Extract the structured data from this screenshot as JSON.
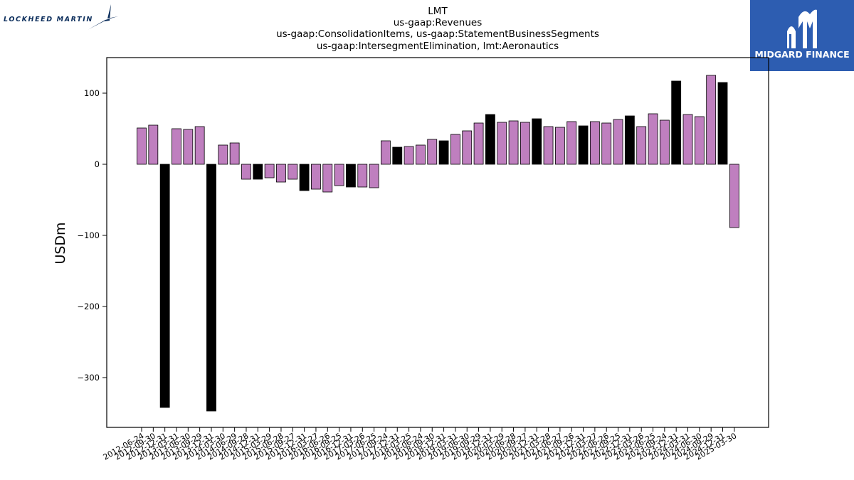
{
  "logos": {
    "left": {
      "text": "LOCKHEED MARTIN"
    },
    "right": {
      "text": "MIDGARD FINANCE",
      "background": "#2d5db1"
    }
  },
  "chart_data": {
    "type": "bar",
    "title_lines": [
      "LMT",
      "us-gaap:Revenues",
      "us-gaap:ConsolidationItems, us-gaap:StatementBusinessSegments",
      "us-gaap:IntersegmentElimination, lmt:Aeronautics"
    ],
    "ylabel": "USDm",
    "xlabel": "",
    "ylim": [
      -370,
      150
    ],
    "yticks": [
      100,
      0,
      -100,
      -200,
      -300
    ],
    "ytick_labels": [
      "100",
      "0",
      "−100",
      "−200",
      "−300"
    ],
    "grid": false,
    "colors": {
      "quarter": "#bf7fbf",
      "annual": "#000000",
      "edge": "#000000"
    },
    "categories": [
      "2012-06-24",
      "2012-09-30",
      "2012-12-31",
      "2013-03-31",
      "2013-06-30",
      "2013-09-29",
      "2013-12-31",
      "2014-03-30",
      "2014-06-29",
      "2014-09-28",
      "2014-12-31",
      "2015-03-29",
      "2015-06-28",
      "2015-09-27",
      "2015-12-31",
      "2016-03-27",
      "2016-06-26",
      "2016-09-25",
      "2016-12-31",
      "2017-03-26",
      "2017-06-25",
      "2017-09-24",
      "2017-12-31",
      "2018-03-25",
      "2018-06-24",
      "2018-09-30",
      "2018-12-31",
      "2019-03-31",
      "2019-06-30",
      "2019-09-29",
      "2019-12-31",
      "2020-03-29",
      "2020-06-28",
      "2020-09-27",
      "2020-12-31",
      "2021-03-28",
      "2021-06-27",
      "2021-09-26",
      "2021-12-31",
      "2022-03-27",
      "2022-06-26",
      "2022-09-25",
      "2022-12-31",
      "2023-03-26",
      "2023-06-25",
      "2023-09-24",
      "2023-12-31",
      "2024-03-31",
      "2024-06-30",
      "2024-09-29",
      "2024-12-31",
      "2025-03-30"
    ],
    "values": [
      51,
      55,
      -342,
      50,
      49,
      53,
      -347,
      27,
      30,
      -21,
      -21,
      -19,
      -25,
      -21,
      -37,
      -35,
      -39,
      -30,
      -32,
      -32,
      -33,
      33,
      24,
      25,
      27,
      35,
      33,
      42,
      47,
      58,
      70,
      59,
      61,
      59,
      64,
      53,
      52,
      60,
      54,
      60,
      58,
      63,
      68,
      53,
      71,
      62,
      117,
      70,
      67,
      125,
      115,
      -89
    ],
    "is_annual": [
      false,
      false,
      true,
      false,
      false,
      false,
      true,
      false,
      false,
      false,
      true,
      false,
      false,
      false,
      true,
      false,
      false,
      false,
      true,
      false,
      false,
      false,
      true,
      false,
      false,
      false,
      true,
      false,
      false,
      false,
      true,
      false,
      false,
      false,
      true,
      false,
      false,
      false,
      true,
      false,
      false,
      false,
      true,
      false,
      false,
      false,
      true,
      false,
      false,
      false,
      true,
      false
    ]
  }
}
